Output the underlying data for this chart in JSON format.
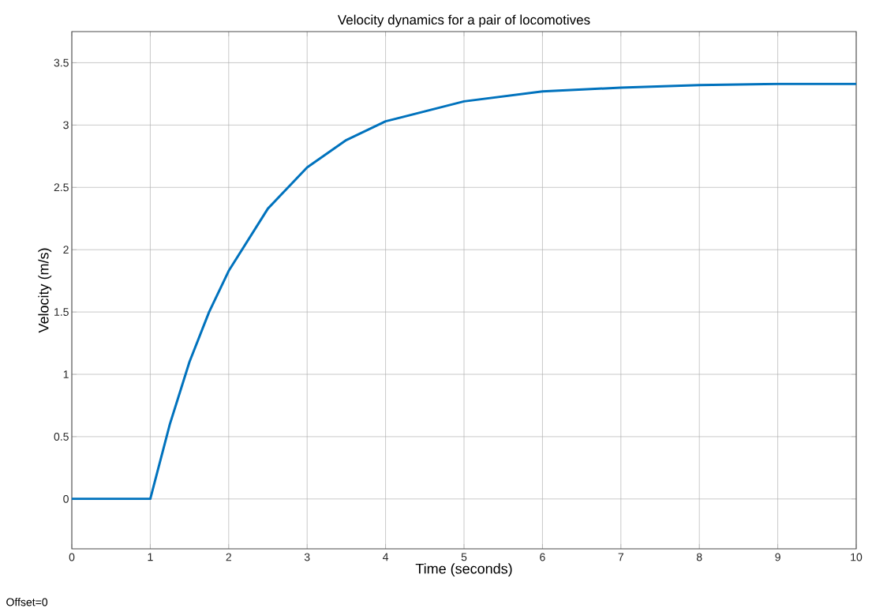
{
  "chart_data": {
    "type": "line",
    "title": "Velocity dynamics for a pair of locomotives",
    "xlabel": "Time (seconds)",
    "ylabel": "Velocity (m/s)",
    "x": [
      0,
      1,
      1.25,
      1.5,
      1.75,
      2,
      2.5,
      3,
      3.5,
      4,
      5,
      6,
      7,
      8,
      9,
      10
    ],
    "series": [
      {
        "color": "#0072bd",
        "values": [
          0,
          0,
          0.6,
          1.1,
          1.5,
          1.83,
          2.33,
          2.66,
          2.88,
          3.03,
          3.19,
          3.27,
          3.3,
          3.32,
          3.33,
          3.33
        ]
      }
    ],
    "xlim": [
      0,
      10
    ],
    "ylim": [
      -0.4,
      3.75
    ],
    "xticks": [
      0,
      1,
      2,
      3,
      4,
      5,
      6,
      7,
      8,
      9,
      10
    ],
    "yticks": [
      0,
      0.5,
      1,
      1.5,
      2,
      2.5,
      3,
      3.5
    ],
    "grid": true,
    "annotations": [
      "Offset=0"
    ]
  }
}
